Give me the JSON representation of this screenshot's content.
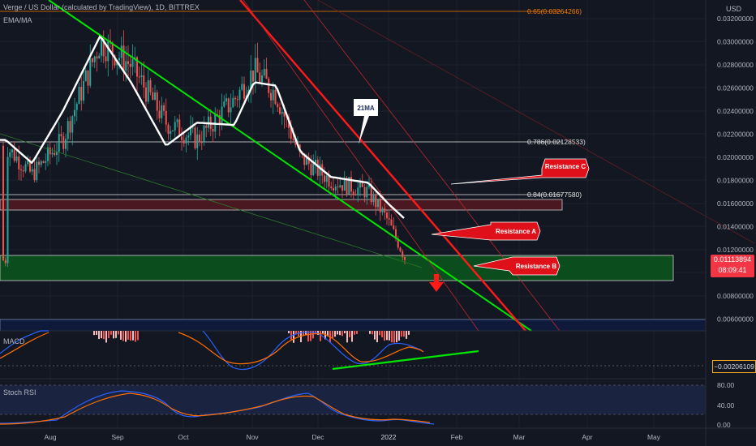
{
  "header": {
    "title": "Verge / US Dollar (calculated by TradingView), 1D, BITTREX",
    "indicator": "EMA/MA"
  },
  "colors": {
    "background": "#131722",
    "grid": "#1e222d",
    "candle_up": "#26a69a",
    "candle_down": "#ef5350",
    "ema": "#ffffff",
    "support_line": "#00e600",
    "resistance_line": "#ff1a1a",
    "green_zone": "#0c4d1d",
    "red_zone": "#4a1820",
    "macd_line": "#2962ff",
    "signal_line": "#ff6d00",
    "rsi_k": "#2962ff",
    "rsi_d": "#ff6d00"
  },
  "axis": {
    "currency": "USD",
    "price_ticks": [
      "0.03200000",
      "0.03000000",
      "0.02800000",
      "0.02600000",
      "0.02400000",
      "0.02200000",
      "0.02000000",
      "0.01800000",
      "0.01600000",
      "0.01400000",
      "0.01200000",
      "0.01000000",
      "0.00800000",
      "0.00600000"
    ],
    "time_ticks": [
      "Aug",
      "Sep",
      "Oct",
      "Nov",
      "Dec",
      "2022",
      "Feb",
      "Mar",
      "Apr",
      "May"
    ],
    "rsi_ticks": [
      "80.00",
      "40.00",
      "0.00"
    ]
  },
  "annotations": {
    "fib_065": "0.65(0.03264266)",
    "fib_0786": "0.786(0.02128533)",
    "fib_084": "0.84(0.01677580)",
    "label_ma": "21MA",
    "resistance_a": "Resistance A",
    "resistance_b": "Resistance B",
    "resistance_c": "Resistance C"
  },
  "price_box": {
    "price": "0.01113894",
    "countdown": "08:09:41"
  },
  "macd": {
    "label": "MACD",
    "value": "−0.00206109"
  },
  "rsi": {
    "label": "Stoch RSI"
  },
  "chart_data": {
    "type": "line",
    "title": "Verge / US Dollar (calculated by TradingView), 1D, BITTREX",
    "ylabel": "USD",
    "ylim": [
      0.0055,
      0.034
    ],
    "x": [
      "2021-07-20",
      "2021-08-01",
      "2021-08-15",
      "2021-09-01",
      "2021-09-15",
      "2021-10-01",
      "2021-10-15",
      "2021-11-01",
      "2021-11-10",
      "2021-11-20",
      "2021-12-01",
      "2021-12-15",
      "2022-01-01",
      "2022-01-10",
      "2022-01-18"
    ],
    "series": [
      {
        "values": [
          0.021,
          0.0185,
          0.0215,
          0.03,
          0.028,
          0.023,
          0.0215,
          0.025,
          0.0275,
          0.0255,
          0.02,
          0.018,
          0.017,
          0.0145,
          0.0111
        ]
      },
      {
        "name": "21MA",
        "values": [
          0.0215,
          0.0195,
          0.024,
          0.0305,
          0.0265,
          0.021,
          0.023,
          0.0228,
          0.0265,
          0.0262,
          0.0205,
          0.0183,
          0.0178,
          0.016,
          0.0146
        ]
      }
    ],
    "levels": {
      "fib_0.65": 0.03264266,
      "fib_0.786": 0.02128533,
      "fib_0.84": 0.0167758,
      "support_zone": [
        0.0092,
        0.012
      ],
      "resistance_zone": [
        0.0155,
        0.0166
      ],
      "bottom_level": 0.0061
    },
    "grid": true
  }
}
